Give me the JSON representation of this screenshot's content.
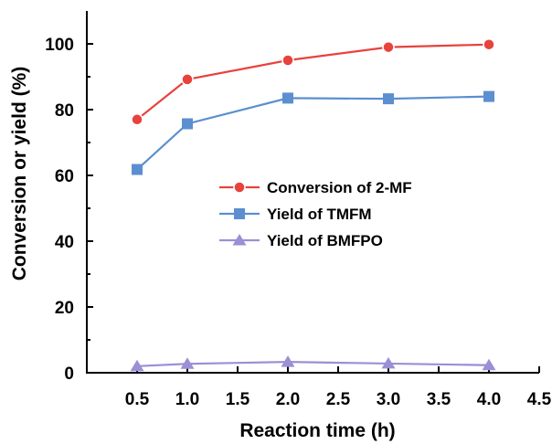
{
  "chart_data": {
    "type": "line",
    "xlabel": "Reaction time (h)",
    "ylabel": "Conversion or yield (%)",
    "xlim": [
      0,
      4.5
    ],
    "ylim": [
      0,
      110
    ],
    "x_ticks": [
      0.5,
      1.0,
      1.5,
      2.0,
      2.5,
      3.0,
      3.5,
      4.0,
      4.5
    ],
    "x_tick_labels": [
      "0.5",
      "1.0",
      "1.5",
      "2.0",
      "2.5",
      "3.0",
      "3.5",
      "4.0",
      "4.5"
    ],
    "y_ticks": [
      0,
      20,
      40,
      60,
      80,
      100
    ],
    "y_tick_labels": [
      "0",
      "20",
      "40",
      "60",
      "80",
      "100"
    ],
    "grid": false,
    "legend_position": "center",
    "x": [
      0.5,
      1.0,
      2.0,
      3.0,
      4.0
    ],
    "series": [
      {
        "name": "Conversion of 2-MF",
        "values": [
          77.0,
          89.2,
          95.0,
          99.0,
          99.8
        ],
        "color": "#e8423c",
        "marker": "circle"
      },
      {
        "name": "Yield of TMFM",
        "values": [
          61.8,
          75.7,
          83.5,
          83.3,
          84.0
        ],
        "color": "#5b8fd0",
        "marker": "square"
      },
      {
        "name": "Yield of BMFPO",
        "values": [
          2.0,
          2.7,
          3.3,
          2.8,
          2.3
        ],
        "color": "#9b8fd6",
        "marker": "triangle"
      }
    ]
  }
}
